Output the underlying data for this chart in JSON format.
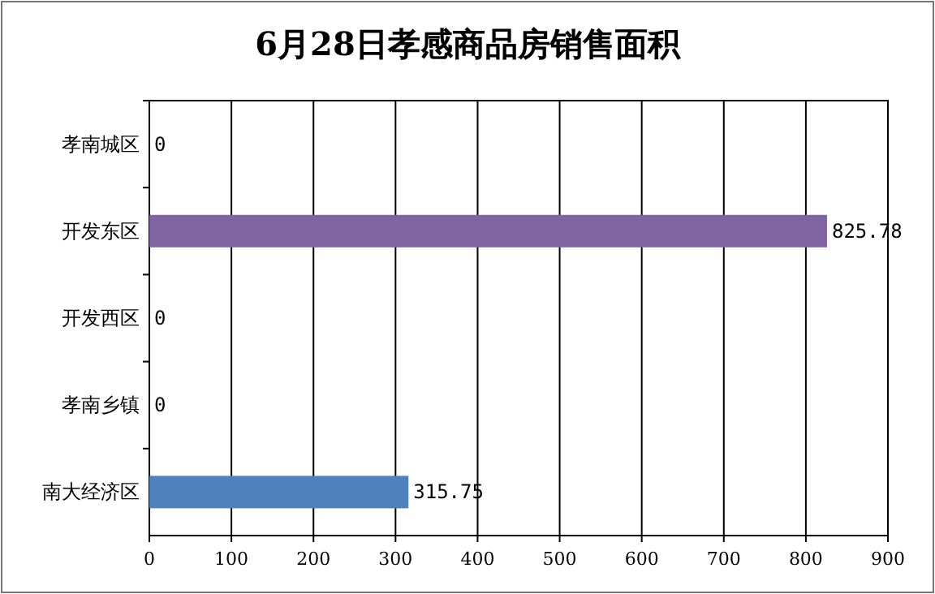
{
  "chart_data": {
    "type": "bar",
    "orientation": "horizontal",
    "title": "6月28日孝感商品房销售面积",
    "categories": [
      "孝南城区",
      "开发东区",
      "开发西区",
      "孝南乡镇",
      "南大经济区"
    ],
    "values": [
      0,
      825.78,
      0,
      0,
      315.75
    ],
    "colors": [
      "#8064a2",
      "#8064a2",
      "#4f81bd",
      "#4f81bd",
      "#4f81bd"
    ],
    "xlim": [
      0,
      900
    ],
    "xticks": [
      0,
      100,
      200,
      300,
      400,
      500,
      600,
      700,
      800,
      900
    ],
    "grid": "x",
    "data_labels": true
  }
}
